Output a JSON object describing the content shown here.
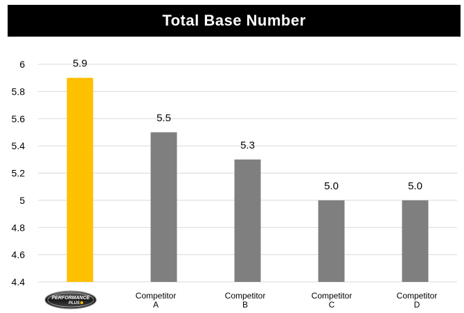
{
  "chart_data": {
    "type": "bar",
    "title": "Total Base Number",
    "categories": [
      "Performance Plus",
      "Competitor A",
      "Competitor B",
      "Competitor C",
      "Competitor D"
    ],
    "category_labels": [
      {
        "logo": "PERFORMANCE PLUS",
        "line1": "",
        "line2": ""
      },
      {
        "logo": "",
        "line1": "Competitor",
        "line2": "A"
      },
      {
        "logo": "",
        "line1": "Competitor",
        "line2": "B"
      },
      {
        "logo": "",
        "line1": "Competitor",
        "line2": "C"
      },
      {
        "logo": "",
        "line1": "Competitor",
        "line2": "D"
      }
    ],
    "values": [
      5.9,
      5.5,
      5.3,
      5.0,
      5.0
    ],
    "data_labels": [
      "5.9",
      "5.5",
      "5.3",
      "5.0",
      "5.0"
    ],
    "ylim": [
      4.4,
      6.0
    ],
    "yticks": [
      "4.4",
      "4.6",
      "4.8",
      "5",
      "5.2",
      "5.4",
      "5.6",
      "5.8",
      "6"
    ],
    "grid": true,
    "colors": [
      "#FFC000",
      "#7F7F7F",
      "#7F7F7F",
      "#7F7F7F",
      "#7F7F7F"
    ],
    "label_color": "#000000",
    "grid_color": "#D9D9D9"
  }
}
